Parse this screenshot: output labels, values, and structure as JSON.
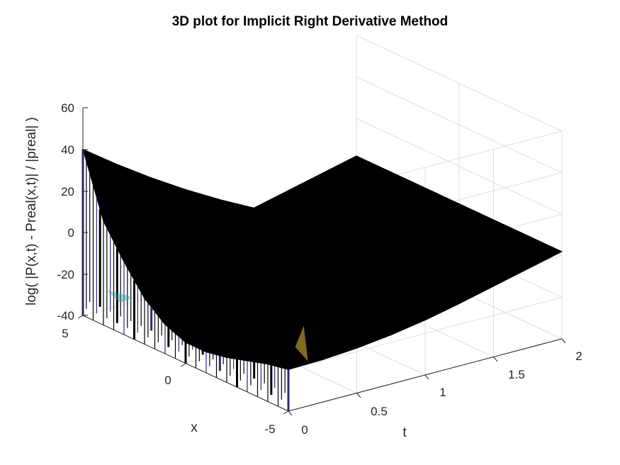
{
  "chart_data": {
    "type": "surface",
    "title": "3D plot for Implicit Right Derivative Method",
    "xlabel": "x",
    "ylabel": "t",
    "zlabel": "log( |P(x,t) - Preal(x,t)| / |preal| )",
    "xlim": [
      -5,
      5
    ],
    "ylim": [
      0,
      2
    ],
    "zlim": [
      -40,
      60
    ],
    "x_ticks": [
      "5",
      "0",
      "-5"
    ],
    "t_ticks": [
      "0",
      "0.5",
      "1",
      "1.5",
      "2"
    ],
    "z_ticks": [
      "60",
      "40",
      "20",
      "0",
      "-20",
      "-40"
    ],
    "grid": true,
    "colormap": "parula",
    "edgecolor": "black",
    "surface_profile": {
      "note_x": [
        5,
        4,
        3,
        2,
        1,
        0,
        -1,
        -2,
        -3,
        -4,
        -5
      ],
      "z_at_t0": [
        40,
        10,
        -5,
        -18,
        -26,
        -30,
        -30,
        -28,
        -25,
        -22,
        -20
      ],
      "t": [
        0,
        0.25,
        0.5,
        0.75,
        1,
        1.25,
        1.5,
        1.75,
        2
      ],
      "z_far_edge_x_minus5": [
        -20,
        -18,
        -16,
        -14,
        -12,
        -10,
        -6,
        -2,
        2
      ]
    }
  },
  "colors": {
    "surface": "#000000",
    "highlight_low": "#2a2a7a",
    "highlight_mid": "#2aa0a0",
    "highlight_high": "#d8b030",
    "grid": "#e0e0e0",
    "axis": "#262626"
  }
}
